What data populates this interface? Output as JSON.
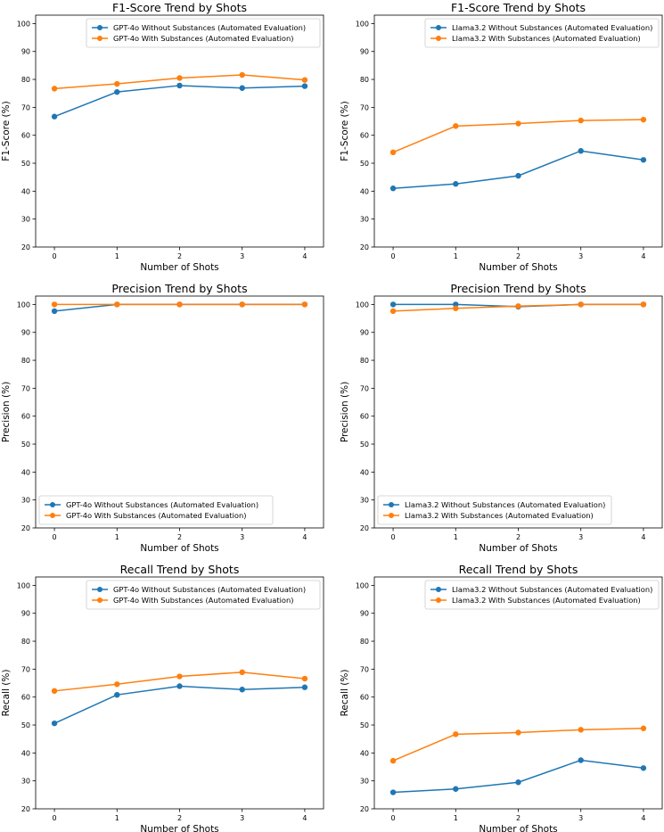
{
  "chart_data": [
    {
      "type": "line",
      "title": "F1-Score Trend by Shots",
      "xlabel": "Number of Shots",
      "ylabel": "F1-Score (%)",
      "x": [
        0,
        1,
        2,
        3,
        4
      ],
      "xticks": [
        "0",
        "1",
        "2",
        "3",
        "4"
      ],
      "ylim": [
        20,
        103
      ],
      "yticks": [
        "20",
        "30",
        "40",
        "50",
        "60",
        "70",
        "80",
        "90",
        "100"
      ],
      "legend_position": "top-right",
      "series": [
        {
          "name": "GPT-4o Without Substances (Automated Evaluation)",
          "color": "#1f77b4",
          "values": [
            66.7,
            75.5,
            77.8,
            76.9,
            77.6
          ]
        },
        {
          "name": "GPT-4o With Substances (Automated Evaluation)",
          "color": "#ff7f0e",
          "values": [
            76.7,
            78.4,
            80.5,
            81.6,
            79.8
          ]
        }
      ]
    },
    {
      "type": "line",
      "title": "F1-Score Trend by Shots",
      "xlabel": "Number of Shots",
      "ylabel": "F1-Score (%)",
      "x": [
        0,
        1,
        2,
        3,
        4
      ],
      "xticks": [
        "0",
        "1",
        "2",
        "3",
        "4"
      ],
      "ylim": [
        20,
        103
      ],
      "yticks": [
        "20",
        "30",
        "40",
        "50",
        "60",
        "70",
        "80",
        "90",
        "100"
      ],
      "legend_position": "top-right",
      "series": [
        {
          "name": "Llama3.2 Without Substances (Automated Evaluation)",
          "color": "#1f77b4",
          "values": [
            41.0,
            42.6,
            45.5,
            54.4,
            51.2
          ]
        },
        {
          "name": "Llama3.2 With Substances (Automated Evaluation)",
          "color": "#ff7f0e",
          "values": [
            53.9,
            63.3,
            64.2,
            65.3,
            65.6
          ]
        }
      ]
    },
    {
      "type": "line",
      "title": "Precision Trend by Shots",
      "xlabel": "Number of Shots",
      "ylabel": "Precision (%)",
      "x": [
        0,
        1,
        2,
        3,
        4
      ],
      "xticks": [
        "0",
        "1",
        "2",
        "3",
        "4"
      ],
      "ylim": [
        20,
        103
      ],
      "yticks": [
        "20",
        "30",
        "40",
        "50",
        "60",
        "70",
        "80",
        "90",
        "100"
      ],
      "legend_position": "bottom-left",
      "series": [
        {
          "name": "GPT-4o Without Substances (Automated Evaluation)",
          "color": "#1f77b4",
          "values": [
            97.6,
            100,
            100,
            100,
            100
          ]
        },
        {
          "name": "GPT-4o With Substances (Automated Evaluation)",
          "color": "#ff7f0e",
          "values": [
            100,
            100,
            100,
            100,
            100
          ]
        }
      ]
    },
    {
      "type": "line",
      "title": "Precision Trend by Shots",
      "xlabel": "Number of Shots",
      "ylabel": "Precision (%)",
      "x": [
        0,
        1,
        2,
        3,
        4
      ],
      "xticks": [
        "0",
        "1",
        "2",
        "3",
        "4"
      ],
      "ylim": [
        20,
        103
      ],
      "yticks": [
        "20",
        "30",
        "40",
        "50",
        "60",
        "70",
        "80",
        "90",
        "100"
      ],
      "legend_position": "bottom-left",
      "series": [
        {
          "name": "Llama3.2 Without Substances (Automated Evaluation)",
          "color": "#1f77b4",
          "values": [
            100,
            100,
            99.2,
            100,
            100
          ]
        },
        {
          "name": "Llama3.2 With Substances (Automated Evaluation)",
          "color": "#ff7f0e",
          "values": [
            97.6,
            98.6,
            99.4,
            100,
            100
          ]
        }
      ]
    },
    {
      "type": "line",
      "title": "Recall Trend by Shots",
      "xlabel": "Number of Shots",
      "ylabel": "Recall (%)",
      "x": [
        0,
        1,
        2,
        3,
        4
      ],
      "xticks": [
        "0",
        "1",
        "2",
        "3",
        "4"
      ],
      "ylim": [
        20,
        103
      ],
      "yticks": [
        "20",
        "30",
        "40",
        "50",
        "60",
        "70",
        "80",
        "90",
        "100"
      ],
      "legend_position": "top-right",
      "series": [
        {
          "name": "GPT-4o Without Substances (Automated Evaluation)",
          "color": "#1f77b4",
          "values": [
            50.6,
            60.8,
            63.9,
            62.7,
            63.5
          ]
        },
        {
          "name": "GPT-4o With Substances (Automated Evaluation)",
          "color": "#ff7f0e",
          "values": [
            62.2,
            64.6,
            67.4,
            68.9,
            66.6
          ]
        }
      ]
    },
    {
      "type": "line",
      "title": "Recall Trend by Shots",
      "xlabel": "Number of Shots",
      "ylabel": "Recall (%)",
      "x": [
        0,
        1,
        2,
        3,
        4
      ],
      "xticks": [
        "0",
        "1",
        "2",
        "3",
        "4"
      ],
      "ylim": [
        20,
        103
      ],
      "yticks": [
        "20",
        "30",
        "40",
        "50",
        "60",
        "70",
        "80",
        "90",
        "100"
      ],
      "legend_position": "top-right",
      "series": [
        {
          "name": "Llama3.2 Without Substances (Automated Evaluation)",
          "color": "#1f77b4",
          "values": [
            25.9,
            27.1,
            29.5,
            37.4,
            34.6
          ]
        },
        {
          "name": "Llama3.2 With Substances (Automated Evaluation)",
          "color": "#ff7f0e",
          "values": [
            37.2,
            46.7,
            47.3,
            48.3,
            48.8
          ]
        }
      ]
    }
  ]
}
